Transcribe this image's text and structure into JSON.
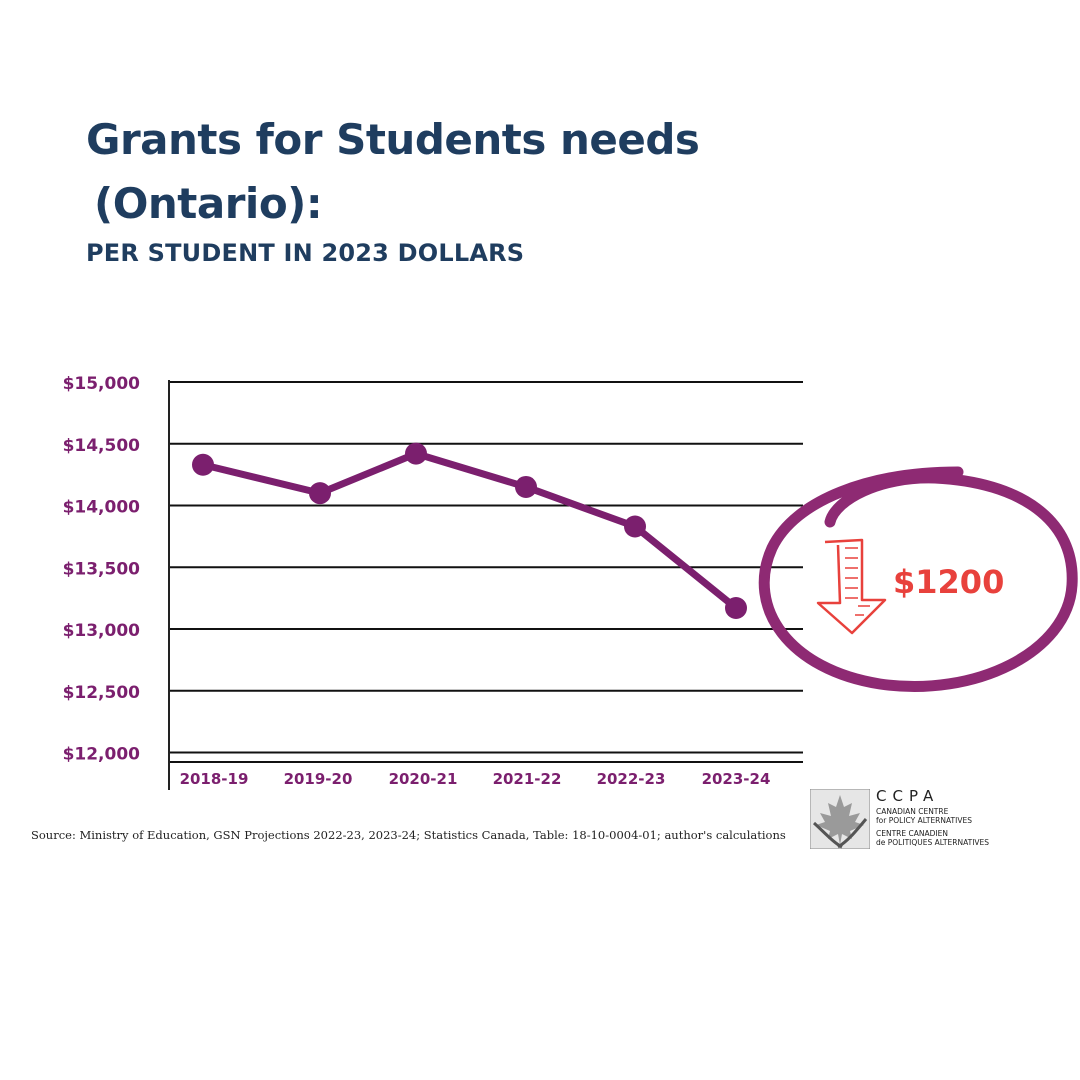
{
  "header": {
    "title_line1": "Grants for Students needs",
    "title_line2": "(Ontario):",
    "subtitle": "PER STUDENT IN 2023 DOLLARS"
  },
  "chart_data": {
    "type": "line",
    "categories": [
      "2018-19",
      "2019-20",
      "2020-21",
      "2021-22",
      "2022-23",
      "2023-24"
    ],
    "values": [
      14330,
      14100,
      14420,
      14150,
      13830,
      13170
    ],
    "y_ticks": [
      15000,
      14500,
      14000,
      13500,
      13000,
      12500,
      12000
    ],
    "y_tick_labels": [
      "$15,000",
      "$14,500",
      "$14,000",
      "$13,500",
      "$13,000",
      "$12,500",
      "$12,000"
    ],
    "ylim": [
      12000,
      15000
    ],
    "grid": true,
    "line_color": "#7b1f6e",
    "tick_color": "#7b1f6e",
    "annotation": {
      "label": "$1200",
      "color": "#e8413c",
      "circle_color": "#8e2a73",
      "arrow_icon": "down-arrow-icon"
    }
  },
  "footer": {
    "source": "Source: Ministry of Education, GSN Projections 2022-23, 2023-24; Statistics Canada, Table: 18-10-0004-01; author's calculations"
  },
  "logo": {
    "name": "CCPA",
    "line1": "CANADIAN CENTRE",
    "line2": "for POLICY ALTERNATIVES",
    "line3": "CENTRE CANADIEN",
    "line4": "de POLITIQUES ALTERNATIVES",
    "icon": "maple-leaf-icon"
  }
}
